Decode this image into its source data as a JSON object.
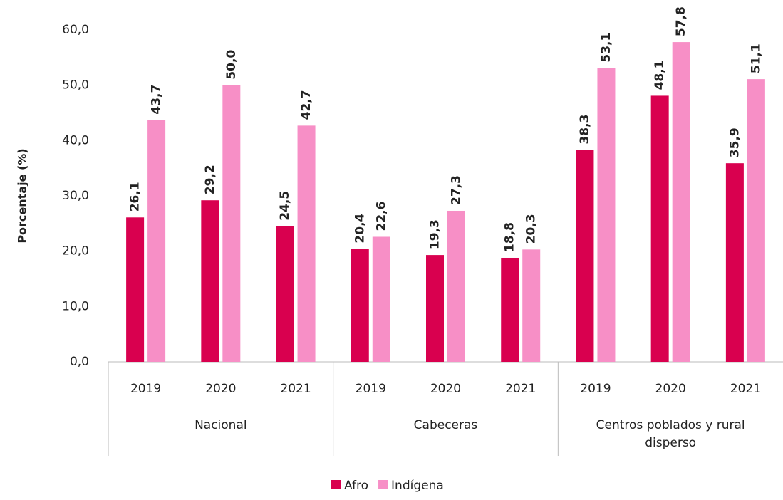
{
  "chart_data": {
    "type": "bar",
    "y_label": "Porcentaje (%)",
    "categories": [
      "2019",
      "2020",
      "2021",
      "2019",
      "2020",
      "2021",
      "2019",
      "2020",
      "2021"
    ],
    "groups": [
      "Nacional",
      "Cabeceras",
      "Centros poblados y rural disperso"
    ],
    "series": [
      {
        "name": "Afro",
        "color": "#d9004f",
        "values": [
          26.1,
          29.2,
          24.5,
          20.4,
          19.3,
          18.8,
          38.3,
          48.1,
          35.9
        ],
        "value_labels": [
          "26,1",
          "29,2",
          "24,5",
          "20,4",
          "19,3",
          "18,8",
          "38,3",
          "48,1",
          "35,9"
        ]
      },
      {
        "name": "Indígena",
        "color": "#f78fc6",
        "values": [
          43.7,
          50.0,
          42.7,
          22.6,
          27.3,
          20.3,
          53.1,
          57.8,
          51.1
        ],
        "value_labels": [
          "43,7",
          "50,0",
          "42,7",
          "22,6",
          "27,3",
          "20,3",
          "53,1",
          "57,8",
          "51,1"
        ]
      }
    ],
    "ylim": [
      0,
      60
    ],
    "yticks": [
      {
        "value": 0,
        "label": "0,0"
      },
      {
        "value": 10,
        "label": "10,0"
      },
      {
        "value": 20,
        "label": "20,0"
      },
      {
        "value": 30,
        "label": "30,0"
      },
      {
        "value": 40,
        "label": "40,0"
      },
      {
        "value": 50,
        "label": "50,0"
      },
      {
        "value": 60,
        "label": "60,0"
      }
    ],
    "grid": false,
    "legend": "bottom"
  }
}
